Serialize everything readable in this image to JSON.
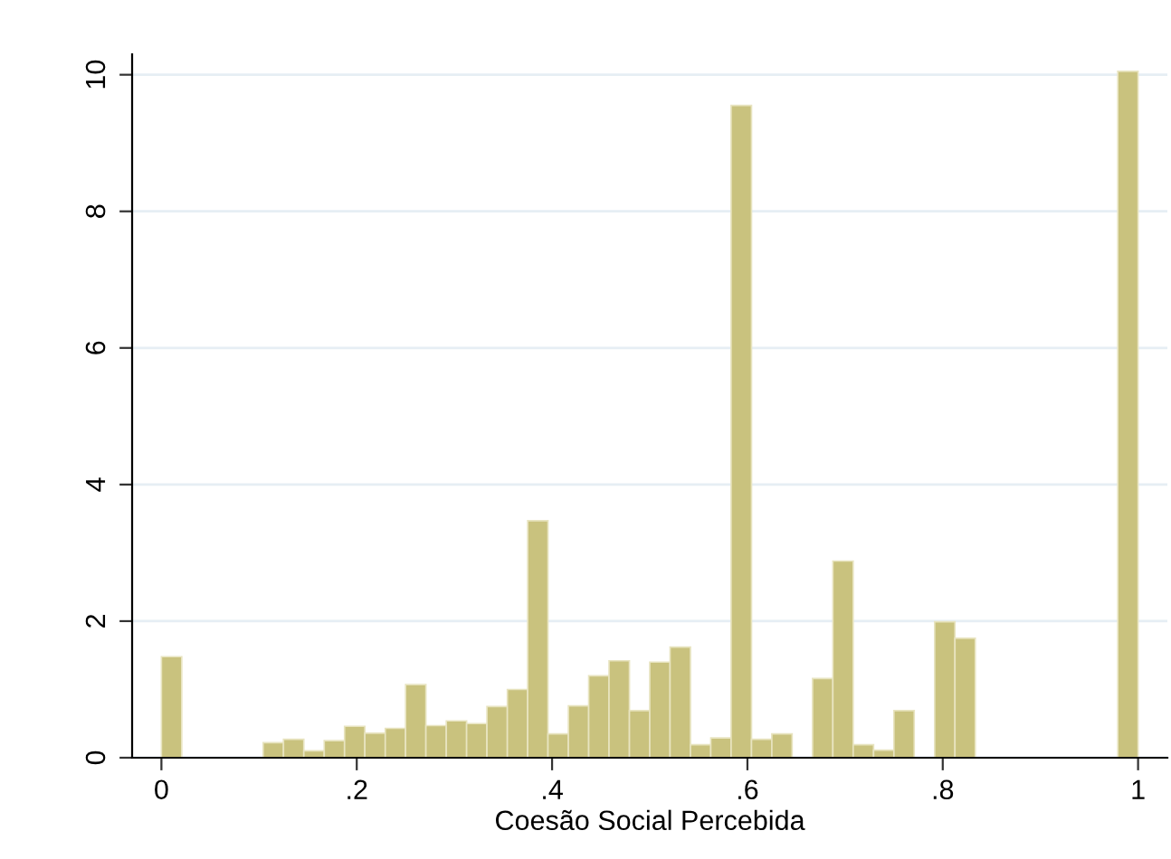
{
  "chart_data": {
    "type": "histogram",
    "xlabel": "Coesão Social Percebida",
    "color": "#c9c27e",
    "bins": [
      0,
      0.0208,
      0.0417,
      0.0625,
      0.0833,
      0.1042,
      0.125,
      0.1458,
      0.1667,
      0.1875,
      0.2083,
      0.2292,
      0.25,
      0.2708,
      0.2917,
      0.3125,
      0.3333,
      0.3542,
      0.375,
      0.3958,
      0.4167,
      0.4375,
      0.4583,
      0.4792,
      0.5,
      0.5208,
      0.5417,
      0.5625,
      0.5833,
      0.6042,
      0.625,
      0.6458,
      0.6667,
      0.6875,
      0.7083,
      0.7292,
      0.75,
      0.7708,
      0.7917,
      0.8125,
      0.8333,
      0.8542,
      0.875,
      0.8958,
      0.9167,
      0.9375,
      0.9583,
      0.9792,
      1
    ],
    "values": [
      1.48,
      0,
      0,
      0,
      0,
      0.22,
      0.27,
      0.1,
      0.25,
      0.46,
      0.36,
      0.43,
      1.07,
      0.47,
      0.54,
      0.5,
      0.75,
      1.0,
      3.47,
      0.35,
      0.76,
      1.2,
      1.42,
      0.69,
      1.4,
      1.62,
      0.19,
      0.29,
      9.55,
      0.27,
      0.35,
      0,
      1.16,
      2.88,
      0.19,
      0.11,
      0.69,
      0,
      1.99,
      1.75,
      0,
      0,
      0,
      0,
      0,
      0,
      0,
      10.05
    ],
    "xlim": [
      -0.03,
      1.03
    ],
    "ylim": [
      0,
      10.3
    ],
    "xticks": [
      {
        "value": 0,
        "label": "0"
      },
      {
        "value": 0.2,
        "label": ".2"
      },
      {
        "value": 0.4,
        "label": ".4"
      },
      {
        "value": 0.6,
        "label": ".6"
      },
      {
        "value": 0.8,
        "label": ".8"
      },
      {
        "value": 1,
        "label": "1"
      }
    ],
    "yticks": [
      0,
      2,
      4,
      6,
      8,
      10
    ],
    "grid": "y"
  }
}
